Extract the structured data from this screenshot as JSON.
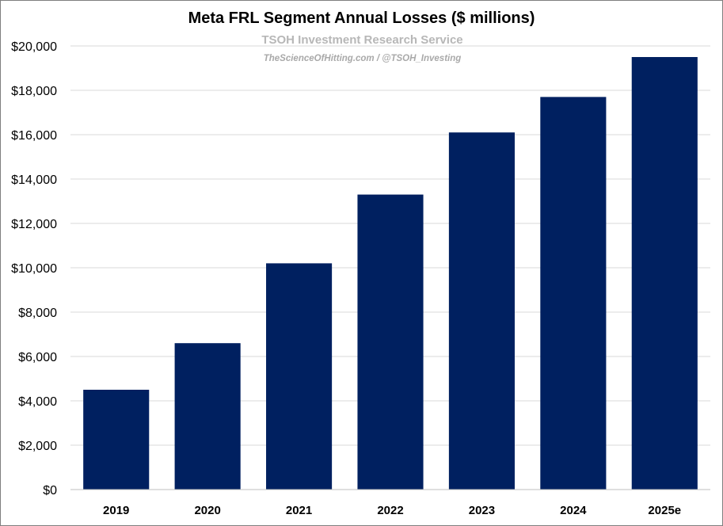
{
  "chart_data": {
    "type": "bar",
    "title": "Meta FRL Segment Annual Losses ($ millions)",
    "watermark": "TSOH Investment Research Service",
    "watermark_sub": "TheScienceOfHitting.com / @TSOH_Investing",
    "categories": [
      "2019",
      "2020",
      "2021",
      "2022",
      "2023",
      "2024",
      "2025e"
    ],
    "values": [
      4500,
      6600,
      10200,
      13300,
      16100,
      17700,
      19500
    ],
    "ylim": [
      0,
      20000
    ],
    "yticks": [
      0,
      2000,
      4000,
      6000,
      8000,
      10000,
      12000,
      14000,
      16000,
      18000,
      20000
    ],
    "ytick_labels": [
      "$0",
      "$2,000",
      "$4,000",
      "$6,000",
      "$8,000",
      "$10,000",
      "$12,000",
      "$14,000",
      "$16,000",
      "$18,000",
      "$20,000"
    ],
    "bar_color": "#002060",
    "grid": true,
    "grid_color": "#d9d9d9"
  }
}
